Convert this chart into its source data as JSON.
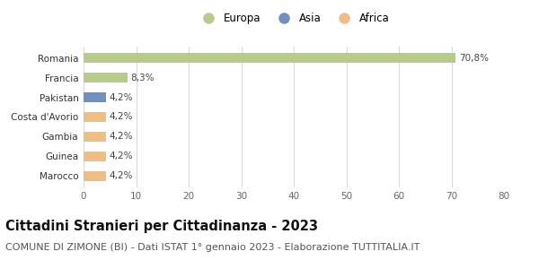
{
  "categories": [
    "Marocco",
    "Guinea",
    "Gambia",
    "Costa d'Avorio",
    "Pakistan",
    "Francia",
    "Romania"
  ],
  "values": [
    4.2,
    4.2,
    4.2,
    4.2,
    4.2,
    8.3,
    70.8
  ],
  "labels": [
    "4,2%",
    "4,2%",
    "4,2%",
    "4,2%",
    "4,2%",
    "8,3%",
    "70,8%"
  ],
  "bar_colors": [
    "#f0be82",
    "#f0be82",
    "#f0be82",
    "#f0be82",
    "#7090c0",
    "#b8cc8a",
    "#b8cc8a"
  ],
  "legend_labels": [
    "Europa",
    "Asia",
    "Africa"
  ],
  "legend_colors": [
    "#b8cc8a",
    "#7090c0",
    "#f0be82"
  ],
  "xlim": [
    0,
    80
  ],
  "xticks": [
    0,
    10,
    20,
    30,
    40,
    50,
    60,
    70,
    80
  ],
  "title": "Cittadini Stranieri per Cittadinanza - 2023",
  "subtitle": "COMUNE DI ZIMONE (BI) - Dati ISTAT 1° gennaio 2023 - Elaborazione TUTTITALIA.IT",
  "title_fontsize": 10.5,
  "subtitle_fontsize": 8,
  "label_fontsize": 7.5,
  "tick_fontsize": 7.5,
  "legend_fontsize": 8.5,
  "bg_color": "#ffffff",
  "grid_color": "#d8d8d8",
  "bar_height": 0.5
}
